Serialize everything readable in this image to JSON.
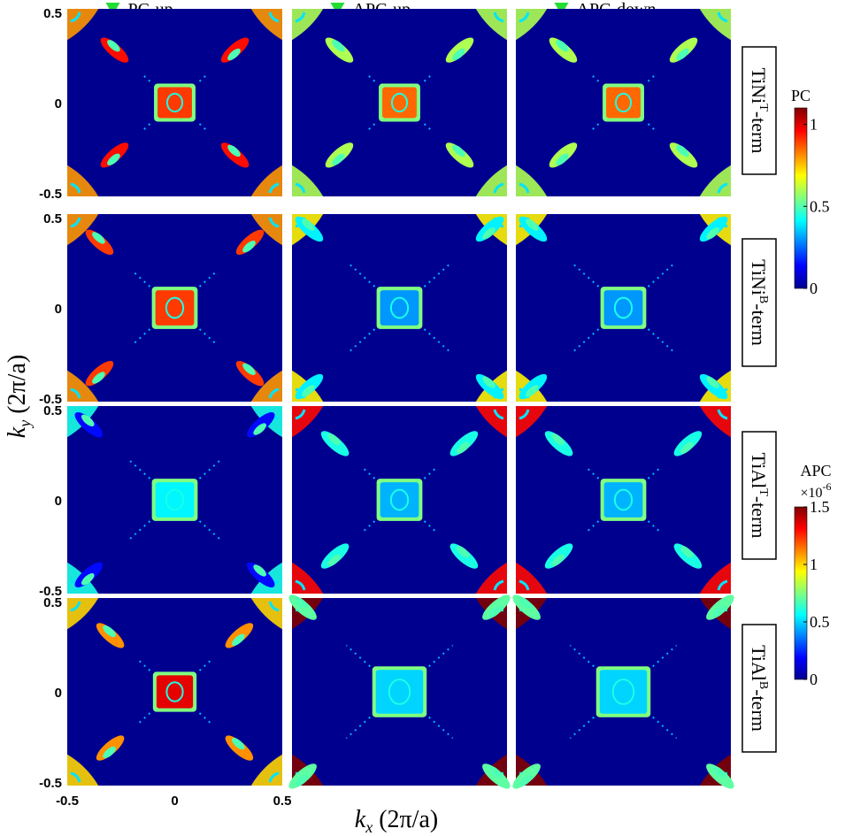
{
  "chart_data": {
    "type": "heatmap",
    "grid": {
      "rows": 4,
      "cols": 3
    },
    "columns": [
      {
        "label": "PC-up",
        "marker": "green-triangle-down-icon"
      },
      {
        "label": "APC-up",
        "marker": "green-triangle-down-icon"
      },
      {
        "label": "APC-down",
        "marker": "green-triangle-down-icon"
      }
    ],
    "rows": [
      {
        "base": "TiNi",
        "sup": "T",
        "suffix": "-term",
        "colorbar": "PC"
      },
      {
        "base": "TiNi",
        "sup": "B",
        "suffix": "-term",
        "colorbar": "PC"
      },
      {
        "base": "TiAl",
        "sup": "T",
        "suffix": "-term",
        "colorbar": "APC"
      },
      {
        "base": "TiAl",
        "sup": "B",
        "suffix": "-term",
        "colorbar": "APC"
      }
    ],
    "xaxis": {
      "var": "k",
      "sub": "x",
      "unit": " (2π/a)",
      "range": [
        -0.5,
        0.5
      ],
      "ticks": [
        "-0.5",
        "0",
        "0.5"
      ]
    },
    "yaxis": {
      "var": "k",
      "sub": "y",
      "unit": " (2π/a)",
      "range": [
        -0.5,
        0.5
      ],
      "ticks": [
        "0.5",
        "0",
        "-0.5"
      ]
    },
    "colorbars": [
      {
        "title": "PC",
        "multiplier": "",
        "range": [
          0,
          1.1
        ],
        "ticks": [
          "1",
          "0.5",
          "0"
        ],
        "tick_values": [
          1,
          0.5,
          0
        ]
      },
      {
        "title": "APC",
        "multiplier": "×10",
        "multiplier_exp": "-6",
        "range": [
          0,
          1.5
        ],
        "ticks": [
          "1.5",
          "1",
          "0.5",
          "0"
        ],
        "tick_values": [
          1.5,
          1,
          0.5,
          0
        ]
      }
    ],
    "colormap": "jet",
    "background_value": 0,
    "panels": [
      {
        "row": 0,
        "col": 0,
        "center_value": 0.9,
        "center_size": 0.16,
        "lobe_value": 0.95,
        "lobe_reach": 0.28,
        "corner_value": 0.8
      },
      {
        "row": 0,
        "col": 1,
        "center_value": 0.85,
        "center_size": 0.16,
        "lobe_value": 0.6,
        "lobe_reach": 0.28,
        "corner_value": 0.6
      },
      {
        "row": 0,
        "col": 2,
        "center_value": 0.85,
        "center_size": 0.16,
        "lobe_value": 0.6,
        "lobe_reach": 0.28,
        "corner_value": 0.6
      },
      {
        "row": 1,
        "col": 0,
        "center_value": 0.9,
        "center_size": 0.18,
        "lobe_value": 0.9,
        "lobe_reach": 0.35,
        "corner_value": 0.8
      },
      {
        "row": 1,
        "col": 1,
        "center_value": 0.3,
        "center_size": 0.18,
        "lobe_value": 0.4,
        "lobe_reach": 0.42,
        "corner_value": 0.7
      },
      {
        "row": 1,
        "col": 2,
        "center_value": 0.3,
        "center_size": 0.18,
        "lobe_value": 0.4,
        "lobe_reach": 0.42,
        "corner_value": 0.7
      },
      {
        "row": 2,
        "col": 0,
        "center_value": 0.55,
        "center_size": 0.18,
        "lobe_value": 0.2,
        "lobe_reach": 0.4,
        "corner_value": 0.6
      },
      {
        "row": 2,
        "col": 1,
        "center_value": 0.45,
        "center_size": 0.18,
        "lobe_value": 0.6,
        "lobe_reach": 0.3,
        "corner_value": 1.3
      },
      {
        "row": 2,
        "col": 2,
        "center_value": 0.45,
        "center_size": 0.18,
        "lobe_value": 0.6,
        "lobe_reach": 0.3,
        "corner_value": 1.3
      },
      {
        "row": 3,
        "col": 0,
        "center_value": 1.35,
        "center_size": 0.17,
        "lobe_value": 1.1,
        "lobe_reach": 0.3,
        "corner_value": 1.0
      },
      {
        "row": 3,
        "col": 1,
        "center_value": 0.5,
        "center_size": 0.22,
        "lobe_value": 0.7,
        "lobe_reach": 0.45,
        "corner_value": 1.5
      },
      {
        "row": 3,
        "col": 2,
        "center_value": 0.5,
        "center_size": 0.22,
        "lobe_value": 0.7,
        "lobe_reach": 0.45,
        "corner_value": 1.5
      }
    ]
  }
}
